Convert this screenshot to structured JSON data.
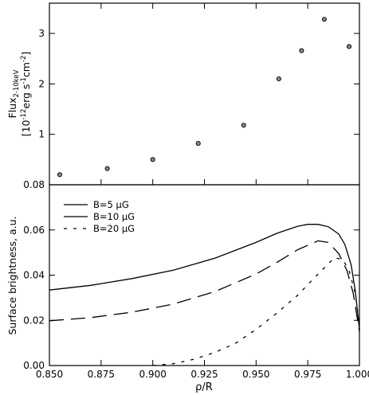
{
  "chart_data": [
    {
      "type": "scatter",
      "panel": "top",
      "ylabel_line1": "Flux",
      "ylabel_sub": "2-10keV",
      "ylabel_line2": "[10",
      "ylabel_exp1": "-12",
      "ylabel_mid": "erg s",
      "ylabel_exp2": "-1",
      "ylabel_mid2": "cm",
      "ylabel_exp3": "-2",
      "ylabel_end": "]",
      "xlim": [
        0.85,
        1.0
      ],
      "ylim": [
        0,
        3.6
      ],
      "yticks": [
        "1",
        "2",
        "3"
      ],
      "ytick_values": [
        1,
        2,
        3
      ],
      "points": [
        {
          "x": 0.855,
          "y": 0.2
        },
        {
          "x": 0.878,
          "y": 0.32
        },
        {
          "x": 0.9,
          "y": 0.5
        },
        {
          "x": 0.922,
          "y": 0.82
        },
        {
          "x": 0.944,
          "y": 1.18
        },
        {
          "x": 0.961,
          "y": 2.1
        },
        {
          "x": 0.972,
          "y": 2.66
        },
        {
          "x": 0.983,
          "y": 3.28
        },
        {
          "x": 0.995,
          "y": 2.74
        }
      ]
    },
    {
      "type": "line",
      "panel": "bottom",
      "ylabel": "Surface brightness, a.u.",
      "xlabel": "ρ/R",
      "xlim": [
        0.85,
        1.0
      ],
      "ylim": [
        0,
        0.08
      ],
      "xticks": [
        "0.850",
        "0.875",
        "0.900",
        "0.925",
        "0.950",
        "0.975",
        "1.000"
      ],
      "xtick_values": [
        0.85,
        0.875,
        0.9,
        0.925,
        0.95,
        0.975,
        1.0
      ],
      "yticks": [
        "0.00",
        "0.02",
        "0.04",
        "0.06",
        "0.08"
      ],
      "ytick_values": [
        0,
        0.02,
        0.04,
        0.06,
        0.08
      ],
      "legend_position": "top-left",
      "series": [
        {
          "name": "B=5 μG",
          "style": "solid",
          "x": [
            0.85,
            0.87,
            0.89,
            0.91,
            0.93,
            0.95,
            0.96,
            0.97,
            0.975,
            0.98,
            0.985,
            0.99,
            0.993,
            0.996,
            0.998,
            1.0
          ],
          "y": [
            0.0334,
            0.0355,
            0.0385,
            0.0422,
            0.0475,
            0.0545,
            0.0585,
            0.0616,
            0.0625,
            0.0625,
            0.0614,
            0.0582,
            0.0535,
            0.0445,
            0.033,
            0.016
          ]
        },
        {
          "name": "B=10 μG",
          "style": "dashed",
          "x": [
            0.85,
            0.87,
            0.89,
            0.91,
            0.93,
            0.95,
            0.96,
            0.97,
            0.98,
            0.985,
            0.99,
            0.994,
            0.997,
            1.0
          ],
          "y": [
            0.0198,
            0.0212,
            0.0236,
            0.0272,
            0.0327,
            0.0405,
            0.0456,
            0.0512,
            0.0552,
            0.0545,
            0.0495,
            0.042,
            0.032,
            0.015
          ]
        },
        {
          "name": "B=20 μG",
          "style": "dotted",
          "x": [
            0.9,
            0.91,
            0.92,
            0.93,
            0.94,
            0.95,
            0.96,
            0.97,
            0.98,
            0.988,
            0.992,
            0.995,
            0.998,
            1.0
          ],
          "y": [
            0.0,
            0.0008,
            0.0028,
            0.0058,
            0.0098,
            0.016,
            0.0232,
            0.031,
            0.0405,
            0.0478,
            0.0468,
            0.042,
            0.032,
            0.018
          ]
        }
      ]
    }
  ]
}
